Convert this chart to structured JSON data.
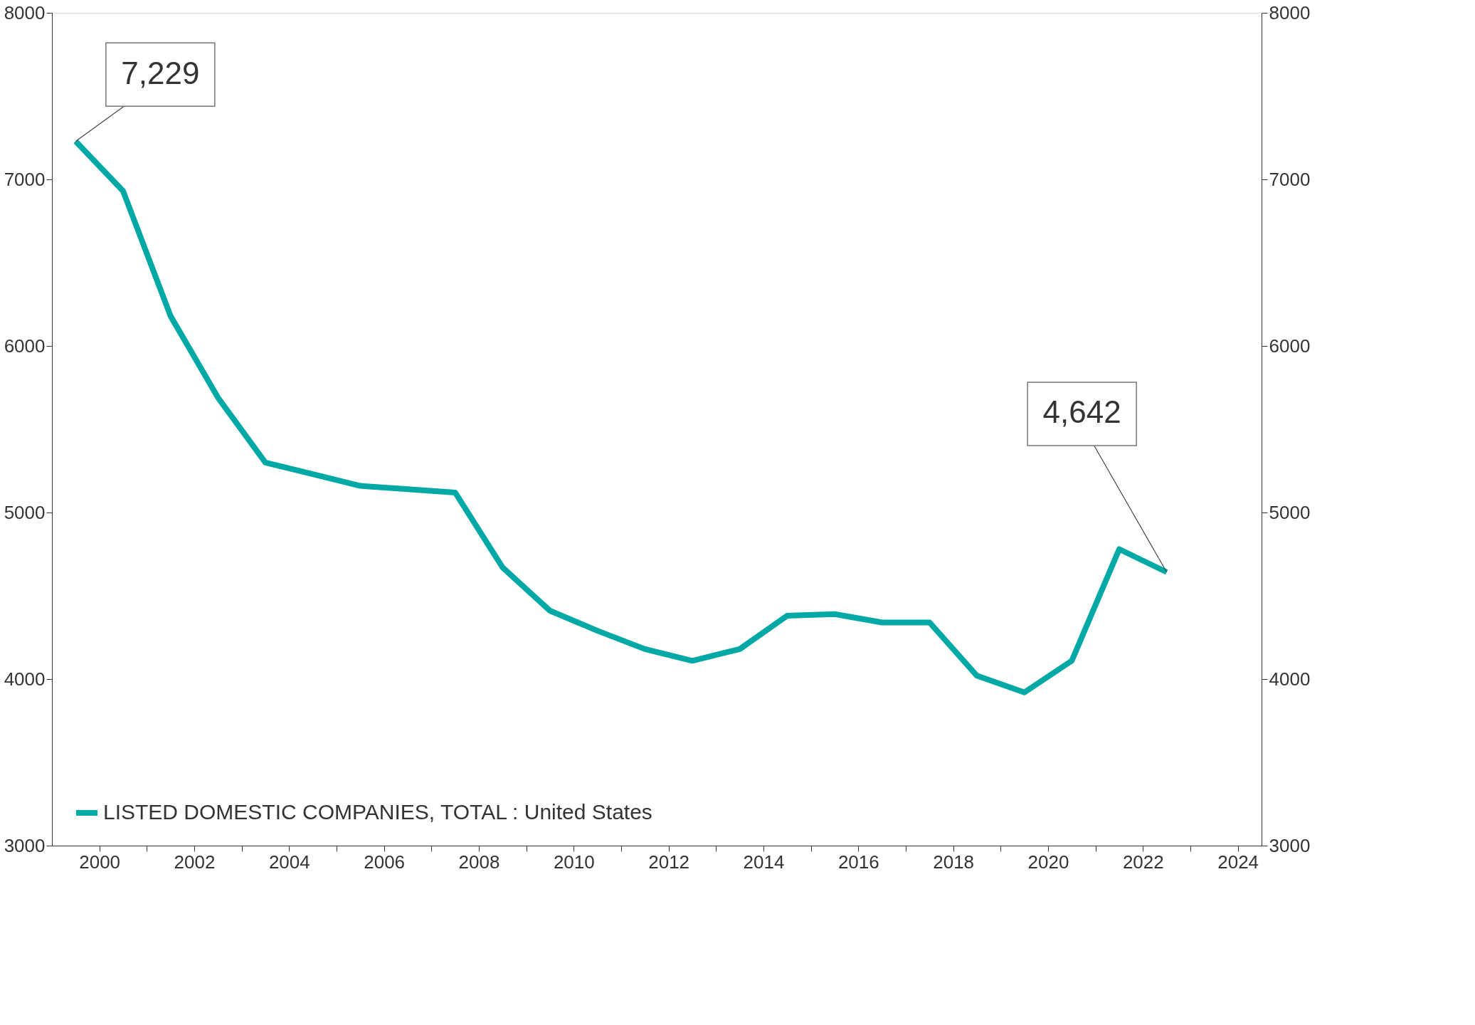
{
  "chart_data": {
    "type": "line",
    "x": [
      1999.5,
      2000.5,
      2001.5,
      2002.5,
      2003.5,
      2004.5,
      2005.5,
      2006.5,
      2007.5,
      2008.5,
      2009.5,
      2010.5,
      2011.5,
      2012.5,
      2013.5,
      2014.5,
      2015.5,
      2016.5,
      2017.5,
      2018.5,
      2019.5,
      2020.5,
      2021.5,
      2022.5
    ],
    "series": [
      {
        "name": "LISTED DOMESTIC COMPANIES, TOTAL : United States",
        "color": "#00a9a5",
        "values": [
          7229,
          6930,
          6180,
          5690,
          5300,
          5230,
          5160,
          5140,
          5120,
          4670,
          4410,
          4290,
          4180,
          4110,
          4180,
          4380,
          4390,
          4340,
          4340,
          4020,
          3920,
          4110,
          4780,
          4642
        ]
      }
    ],
    "xlim": [
      1999,
      2024.5
    ],
    "xticks": [
      2000,
      {
        "value": 2001,
        "label": null
      },
      2002,
      {
        "value": 2003,
        "label": null
      },
      2004,
      {
        "value": 2005,
        "label": null
      },
      2006,
      {
        "value": 2007,
        "label": null
      },
      2008,
      {
        "value": 2009,
        "label": null
      },
      2010,
      {
        "value": 2011,
        "label": null
      },
      2012,
      {
        "value": 2013,
        "label": null
      },
      2014,
      {
        "value": 2015,
        "label": null
      },
      2016,
      {
        "value": 2017,
        "label": null
      },
      2018,
      {
        "value": 2019,
        "label": null
      },
      2020,
      {
        "value": 2021,
        "label": null
      },
      2022,
      {
        "value": 2023,
        "label": null
      },
      2024
    ],
    "ylim": [
      3000,
      8000
    ],
    "yticks": [
      3000,
      4000,
      5000,
      6000,
      7000,
      8000
    ],
    "y2lim": [
      3000,
      8000
    ],
    "y2ticks": [
      3000,
      4000,
      5000,
      6000,
      7000,
      8000
    ],
    "annotations": [
      {
        "text": "7,229",
        "x": 1999.5,
        "y": 7229
      },
      {
        "text": "4,642",
        "x": 2022.5,
        "y": 4642
      }
    ],
    "legend": "bottom left",
    "grid": false,
    "marker": "none",
    "line_style": "solid"
  }
}
